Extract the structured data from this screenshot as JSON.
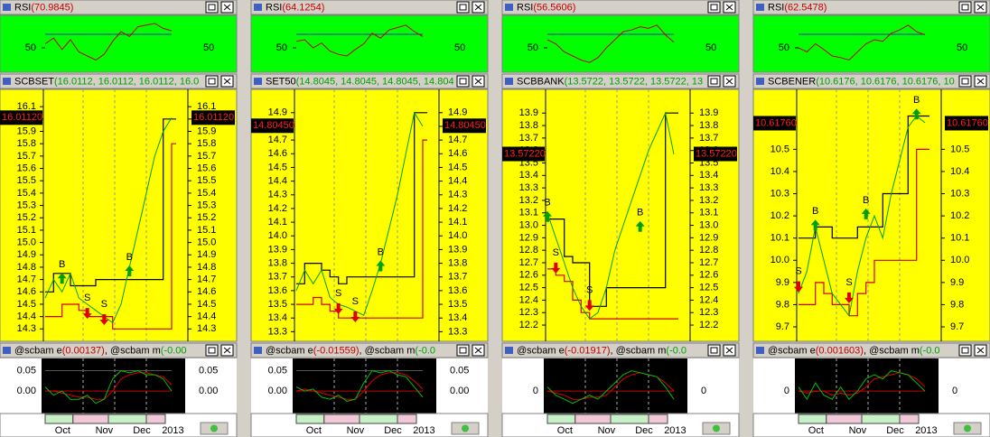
{
  "panels": [
    {
      "rsi": {
        "title": "RSI",
        "value": "(70.9845)",
        "ylim": [
          20,
          90
        ],
        "ticks": [
          50
        ],
        "values": [
          55,
          62,
          48,
          60,
          45,
          40,
          35,
          42,
          58,
          70,
          64,
          76,
          78,
          80,
          74,
          71
        ]
      },
      "main": {
        "title": "SCBSET",
        "value": "(16.0112, 16.0112, 16.0112, 16.0",
        "ylim": [
          14.2,
          16.24
        ],
        "ticks": [
          16.1,
          {
            "value": 16,
            "label": "16.0"
          },
          15.9,
          15.8,
          15.7,
          15.6,
          15.5,
          15.4,
          15.3,
          15.2,
          15.1,
          {
            "value": 15,
            "label": "15.0"
          },
          14.9,
          14.8,
          14.7,
          14.6,
          14.5,
          14.4,
          14.3
        ],
        "last": {
          "value": 16.0112,
          "label": "16.01120"
        },
        "close": [
          14.55,
          14.7,
          14.6,
          14.75,
          14.55,
          14.5,
          14.45,
          14.4,
          14.35,
          14.5,
          14.8,
          15.1,
          15.4,
          15.7,
          15.9,
          16.01
        ],
        "upper": [
          14.6,
          14.75,
          14.75,
          14.65,
          14.65,
          14.65,
          14.7,
          14.7,
          14.7,
          14.7,
          14.7,
          14.7,
          14.7,
          14.7,
          16.0,
          16.0
        ],
        "lower": [
          14.4,
          14.4,
          14.5,
          14.5,
          14.45,
          14.4,
          14.4,
          14.4,
          14.3,
          14.3,
          14.3,
          14.3,
          14.3,
          14.3,
          14.3,
          15.8
        ],
        "signals": [
          {
            "label": "B",
            "x": 2,
            "value": 14.82
          },
          {
            "label": "S",
            "x": 5,
            "value": 14.55
          },
          {
            "label": "S",
            "x": 7,
            "value": 14.5
          },
          {
            "label": "B",
            "x": 10,
            "value": 14.88
          }
        ]
      },
      "osc": {
        "name_e": "@scbam e",
        "value_e": "(0.00137)",
        "name_m": ", @scbam m",
        "value_m": "(-0.00",
        "ylim": [
          -0.055,
          0.08
        ],
        "ticks": [
          0.05,
          {
            "value": 0,
            "label": "0.00"
          }
        ],
        "e": [
          0.01,
          -0.01,
          0.0,
          -0.02,
          -0.02,
          -0.01,
          -0.03,
          -0.02,
          0.03,
          0.05,
          0.045,
          0.05,
          0.04,
          0.04,
          0.03,
          0.0
        ],
        "m": [
          0.0,
          0.0,
          -0.005,
          -0.01,
          -0.015,
          -0.015,
          -0.02,
          -0.02,
          0.0,
          0.03,
          0.04,
          0.045,
          0.045,
          0.04,
          0.035,
          0.015
        ],
        "dates": [
          "Oct",
          "Nov",
          "Dec",
          "2013"
        ]
      }
    },
    {
      "rsi": {
        "title": "RSI",
        "value": "(64.1254)",
        "ylim": [
          20,
          90
        ],
        "ticks": [
          50
        ],
        "values": [
          58,
          60,
          50,
          56,
          46,
          42,
          40,
          48,
          55,
          68,
          62,
          72,
          75,
          78,
          70,
          64
        ]
      },
      "main": {
        "title": "SET50",
        "value": "(14.8045, 14.8045, 14.8045, 14.804",
        "ylim": [
          13.23,
          15.07
        ],
        "ticks": [
          14.9,
          14.8,
          14.7,
          14.6,
          14.5,
          14.4,
          14.3,
          14.2,
          14.1,
          {
            "value": 14,
            "label": "14.0"
          },
          13.9,
          13.8,
          13.7,
          13.6,
          13.5,
          13.4,
          13.3
        ],
        "last": {
          "value": 14.8045,
          "label": "14.80450"
        },
        "close": [
          13.6,
          13.75,
          13.65,
          13.75,
          13.55,
          13.5,
          13.48,
          13.45,
          13.42,
          13.6,
          13.8,
          14.05,
          14.3,
          14.6,
          14.9,
          14.8
        ],
        "upper": [
          13.65,
          13.8,
          13.8,
          13.75,
          13.7,
          13.65,
          13.7,
          13.7,
          13.7,
          13.7,
          13.7,
          13.7,
          13.7,
          13.7,
          14.9,
          14.9
        ],
        "lower": [
          13.5,
          13.5,
          13.55,
          13.5,
          13.45,
          13.4,
          13.4,
          13.4,
          13.4,
          13.4,
          13.4,
          13.4,
          13.4,
          13.4,
          13.4,
          14.7
        ],
        "signals": [
          {
            "label": "S",
            "x": 5,
            "value": 13.58
          },
          {
            "label": "S",
            "x": 7,
            "value": 13.52
          },
          {
            "label": "B",
            "x": 10,
            "value": 13.88
          }
        ]
      },
      "osc": {
        "name_e": "@scbam e",
        "value_e": "(-0.01559)",
        "name_m": ", @scbam m",
        "value_m": "(-0.0",
        "ylim": [
          -0.055,
          0.08
        ],
        "ticks": [
          0.05,
          {
            "value": 0,
            "label": "0.00"
          }
        ],
        "e": [
          0.01,
          0.0,
          0.005,
          -0.015,
          -0.02,
          -0.01,
          -0.025,
          -0.02,
          0.02,
          0.05,
          0.045,
          0.05,
          0.04,
          0.035,
          0.01,
          -0.015
        ],
        "m": [
          0.0,
          0.005,
          0.0,
          -0.005,
          -0.01,
          -0.015,
          -0.02,
          -0.02,
          0.0,
          0.025,
          0.04,
          0.045,
          0.045,
          0.04,
          0.025,
          0.005
        ],
        "dates": [
          "Oct",
          "Nov",
          "Dec",
          "2013"
        ]
      }
    },
    {
      "rsi": {
        "title": "RSI",
        "value": "(56.5606)",
        "ylim": [
          20,
          90
        ],
        "ticks": [
          50
        ],
        "values": [
          60,
          55,
          45,
          40,
          35,
          32,
          38,
          50,
          60,
          70,
          72,
          76,
          74,
          78,
          66,
          57
        ]
      },
      "main": {
        "title": "SCBBANK",
        "value": "(13.5722, 13.5722, 13.5722, 13",
        "ylim": [
          12.07,
          14.09
        ],
        "ticks": [
          13.9,
          13.8,
          13.7,
          13.6,
          13.5,
          13.4,
          13.3,
          13.2,
          13.1,
          {
            "value": 13,
            "label": "13.0"
          },
          12.9,
          12.8,
          12.7,
          12.6,
          12.5,
          12.4,
          12.3,
          12.2
        ],
        "last": {
          "value": 13.5722,
          "label": "13.57220"
        },
        "close": [
          13.1,
          12.9,
          12.7,
          12.5,
          12.35,
          12.25,
          12.3,
          12.5,
          12.8,
          13.0,
          13.2,
          13.4,
          13.6,
          13.75,
          13.9,
          13.57
        ],
        "upper": [
          13.05,
          13.05,
          12.75,
          12.7,
          12.7,
          12.35,
          12.35,
          12.5,
          12.5,
          12.5,
          12.5,
          12.5,
          12.5,
          12.5,
          13.9,
          13.9
        ],
        "lower": [
          12.65,
          12.6,
          12.55,
          12.4,
          12.3,
          12.25,
          12.25,
          12.25,
          12.25,
          12.25,
          12.25,
          12.25,
          12.25,
          12.25,
          12.25,
          12.25
        ],
        "signals": [
          {
            "label": "B",
            "x": 0,
            "value": 13.18
          },
          {
            "label": "S",
            "x": 1,
            "value": 12.78
          },
          {
            "label": "S",
            "x": 5,
            "value": 12.48
          },
          {
            "label": "B",
            "x": 11,
            "value": 13.1
          }
        ]
      },
      "osc": {
        "name_e": "@scbam e",
        "value_e": "(-0.01917)",
        "name_m": ", @scbam m",
        "value_m": "(-0.0",
        "ylim": [
          -0.055,
          0.08
        ],
        "ticks": [
          0
        ],
        "e": [
          0.01,
          -0.01,
          -0.02,
          -0.03,
          -0.02,
          -0.01,
          -0.02,
          0.0,
          0.02,
          0.04,
          0.05,
          0.045,
          0.04,
          0.035,
          0.01,
          -0.02
        ],
        "m": [
          0.0,
          -0.005,
          -0.01,
          -0.02,
          -0.02,
          -0.015,
          -0.015,
          -0.01,
          0.01,
          0.03,
          0.04,
          0.045,
          0.04,
          0.035,
          0.02,
          0.0
        ],
        "dates": [
          "Oct",
          "Nov",
          "Dec",
          "2013"
        ]
      }
    },
    {
      "rsi": {
        "title": "RSI",
        "value": "(62.5478)",
        "ylim": [
          20,
          90
        ],
        "ticks": [
          50
        ],
        "values": [
          50,
          45,
          55,
          48,
          40,
          38,
          35,
          45,
          55,
          60,
          58,
          68,
          72,
          78,
          70,
          66
        ]
      },
      "main": {
        "title": "SCBENER",
        "value": "(10.6176, 10.6176, 10.6176, 10.6",
        "ylim": [
          9.635,
          10.77
        ],
        "ticks": [
          10.5,
          10.4,
          10.3,
          10.2,
          10.1,
          {
            "value": 10,
            "label": "10.0"
          },
          9.9,
          9.8,
          9.7
        ],
        "last": {
          "value": 10.6176,
          "label": "10.61760"
        },
        "close": [
          9.85,
          9.95,
          10.15,
          10.0,
          9.85,
          9.8,
          9.75,
          9.95,
          10.1,
          10.2,
          10.1,
          10.3,
          10.45,
          10.6,
          10.65,
          10.62
        ],
        "upper": [
          10.1,
          10.1,
          10.15,
          10.15,
          10.1,
          10.1,
          10.1,
          10.15,
          10.15,
          10.15,
          10.3,
          10.3,
          10.3,
          10.65,
          10.65,
          10.65
        ],
        "lower": [
          9.8,
          9.8,
          9.9,
          9.85,
          9.8,
          9.8,
          9.75,
          9.85,
          9.9,
          10.0,
          10.0,
          10.0,
          10.0,
          10.0,
          10.5,
          10.5
        ],
        "signals": [
          {
            "label": "S",
            "x": 0,
            "value": 9.95
          },
          {
            "label": "B",
            "x": 2,
            "value": 10.22
          },
          {
            "label": "S",
            "x": 6,
            "value": 9.9
          },
          {
            "label": "B",
            "x": 8,
            "value": 10.27
          },
          {
            "label": "B",
            "x": 14,
            "value": 10.72
          }
        ]
      },
      "osc": {
        "name_e": "@scbam e",
        "value_e": "(0.001603)",
        "name_m": ", @scbam m",
        "value_m": "(-0.0",
        "ylim": [
          -0.055,
          0.08
        ],
        "ticks": [
          0
        ],
        "e": [
          0.01,
          -0.02,
          0.02,
          -0.01,
          -0.02,
          0.01,
          -0.02,
          0.0,
          0.03,
          0.04,
          0.03,
          0.05,
          0.045,
          0.04,
          0.02,
          0.0
        ],
        "m": [
          0.0,
          -0.005,
          0.0,
          0.0,
          -0.01,
          -0.005,
          -0.01,
          -0.005,
          0.01,
          0.03,
          0.035,
          0.04,
          0.045,
          0.04,
          0.03,
          0.01
        ],
        "dates": [
          "Oct",
          "Nov",
          "Dec",
          "2013"
        ]
      }
    }
  ]
}
